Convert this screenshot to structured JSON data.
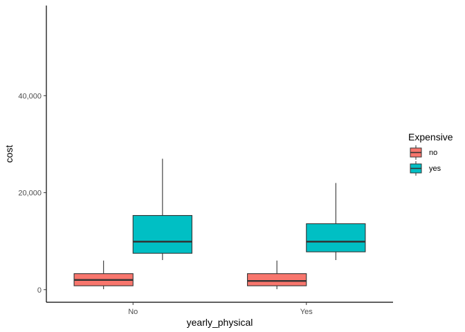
{
  "chart_data": {
    "type": "boxplot",
    "xlabel": "yearly_physical",
    "ylabel": "cost",
    "categories": [
      "No",
      "Yes"
    ],
    "y_ticks": [
      0,
      20000,
      40000
    ],
    "y_tick_labels": [
      "0",
      "20,000",
      "40,000"
    ],
    "ylim": [
      -2600,
      58600
    ],
    "grid": false,
    "legend": {
      "title": "Expensive",
      "position": "right"
    },
    "series": [
      {
        "name": "no",
        "color": "#F8766D",
        "boxes": [
          {
            "category": "No",
            "whisker_low": 100,
            "q1": 800,
            "median": 2000,
            "q3": 3300,
            "whisker_high": 6000
          },
          {
            "category": "Yes",
            "whisker_low": 100,
            "q1": 800,
            "median": 1800,
            "q3": 3300,
            "whisker_high": 6000
          }
        ]
      },
      {
        "name": "yes",
        "color": "#00BFC4",
        "boxes": [
          {
            "category": "No",
            "whisker_low": 6100,
            "q1": 7500,
            "median": 9900,
            "q3": 15300,
            "whisker_high": 27000
          },
          {
            "category": "Yes",
            "whisker_low": 6100,
            "q1": 7800,
            "median": 9900,
            "q3": 13600,
            "whisker_high": 22000
          }
        ]
      }
    ]
  }
}
